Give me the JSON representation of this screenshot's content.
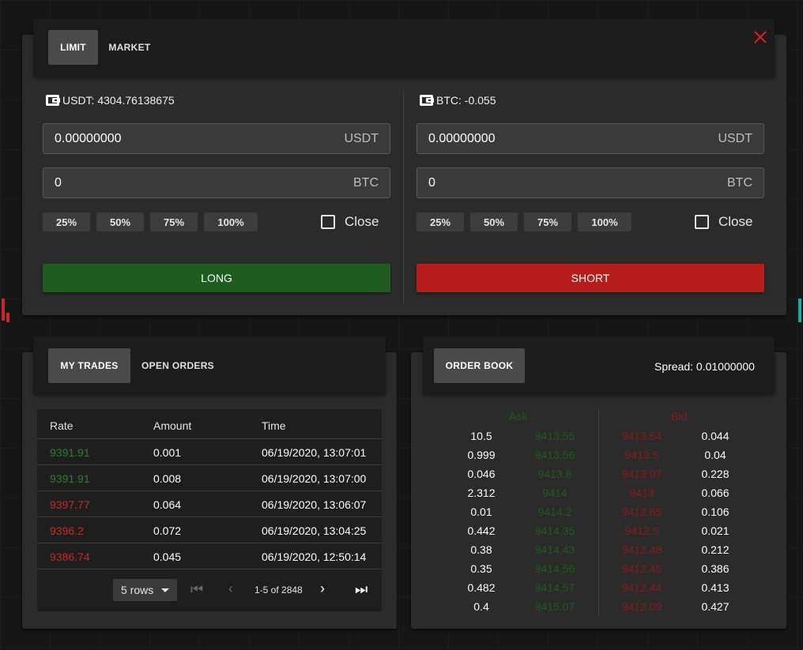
{
  "colors": {
    "buy": "#1e5c1f",
    "sell": "#b71c1c",
    "price_up": "#2e7d32",
    "price_down": "#c62828"
  },
  "order_panel": {
    "tabs": [
      {
        "label": "LIMIT",
        "active": true
      },
      {
        "label": "MARKET",
        "active": false
      }
    ],
    "close_icon": "close-icon",
    "buy": {
      "wallet_label": "USDT: 4304.76138675",
      "price_value": "0.00000000",
      "price_unit": "USDT",
      "amount_value": "0",
      "amount_unit": "BTC",
      "percents": [
        "25%",
        "50%",
        "75%",
        "100%"
      ],
      "close_label": "Close",
      "action_label": "LONG"
    },
    "sell": {
      "wallet_label": "BTC: -0.055",
      "price_value": "0.00000000",
      "price_unit": "USDT",
      "amount_value": "0",
      "amount_unit": "BTC",
      "percents": [
        "25%",
        "50%",
        "75%",
        "100%"
      ],
      "close_label": "Close",
      "action_label": "SHORT"
    }
  },
  "trades_panel": {
    "tabs": [
      {
        "label": "MY TRADES",
        "active": true
      },
      {
        "label": "OPEN ORDERS",
        "active": false
      }
    ],
    "columns": [
      "Rate",
      "Amount",
      "Time"
    ],
    "rows": [
      {
        "rate": "9391.91",
        "amount": "0.001",
        "time": "06/19/2020, 13:07:01",
        "side": "up"
      },
      {
        "rate": "9391.91",
        "amount": "0.008",
        "time": "06/19/2020, 13:07:00",
        "side": "up"
      },
      {
        "rate": "9397.77",
        "amount": "0.064",
        "time": "06/19/2020, 13:06:07",
        "side": "down"
      },
      {
        "rate": "9396.2",
        "amount": "0.072",
        "time": "06/19/2020, 13:04:25",
        "side": "down"
      },
      {
        "rate": "9386.74",
        "amount": "0.045",
        "time": "06/19/2020, 12:50:14",
        "side": "down"
      }
    ],
    "pagination": {
      "rows_per_page": "5 rows",
      "range": "1-5 of 2848"
    }
  },
  "orderbook_panel": {
    "tab_label": "ORDER BOOK",
    "spread": "Spread: 0.01000000",
    "ask_label": "Ask",
    "bid_label": "Bid",
    "asks": [
      {
        "amount": "10.5",
        "price": "9413.55"
      },
      {
        "amount": "0.999",
        "price": "9413.56"
      },
      {
        "amount": "0.046",
        "price": "9413.8"
      },
      {
        "amount": "2.312",
        "price": "9414"
      },
      {
        "amount": "0.01",
        "price": "9414.2"
      },
      {
        "amount": "0.442",
        "price": "9414.35"
      },
      {
        "amount": "0.38",
        "price": "9414.43"
      },
      {
        "amount": "0.35",
        "price": "9414.56"
      },
      {
        "amount": "0.482",
        "price": "9414.57"
      },
      {
        "amount": "0.4",
        "price": "9415.07"
      }
    ],
    "bids": [
      {
        "price": "9413.54",
        "amount": "0.044"
      },
      {
        "price": "9413.5",
        "amount": "0.04"
      },
      {
        "price": "9413.07",
        "amount": "0.228"
      },
      {
        "price": "9413",
        "amount": "0.066"
      },
      {
        "price": "9412.65",
        "amount": "0.106"
      },
      {
        "price": "9412.5",
        "amount": "0.021"
      },
      {
        "price": "9412.48",
        "amount": "0.212"
      },
      {
        "price": "9412.45",
        "amount": "0.386"
      },
      {
        "price": "9412.44",
        "amount": "0.413"
      },
      {
        "price": "9412.09",
        "amount": "0.427"
      }
    ]
  }
}
